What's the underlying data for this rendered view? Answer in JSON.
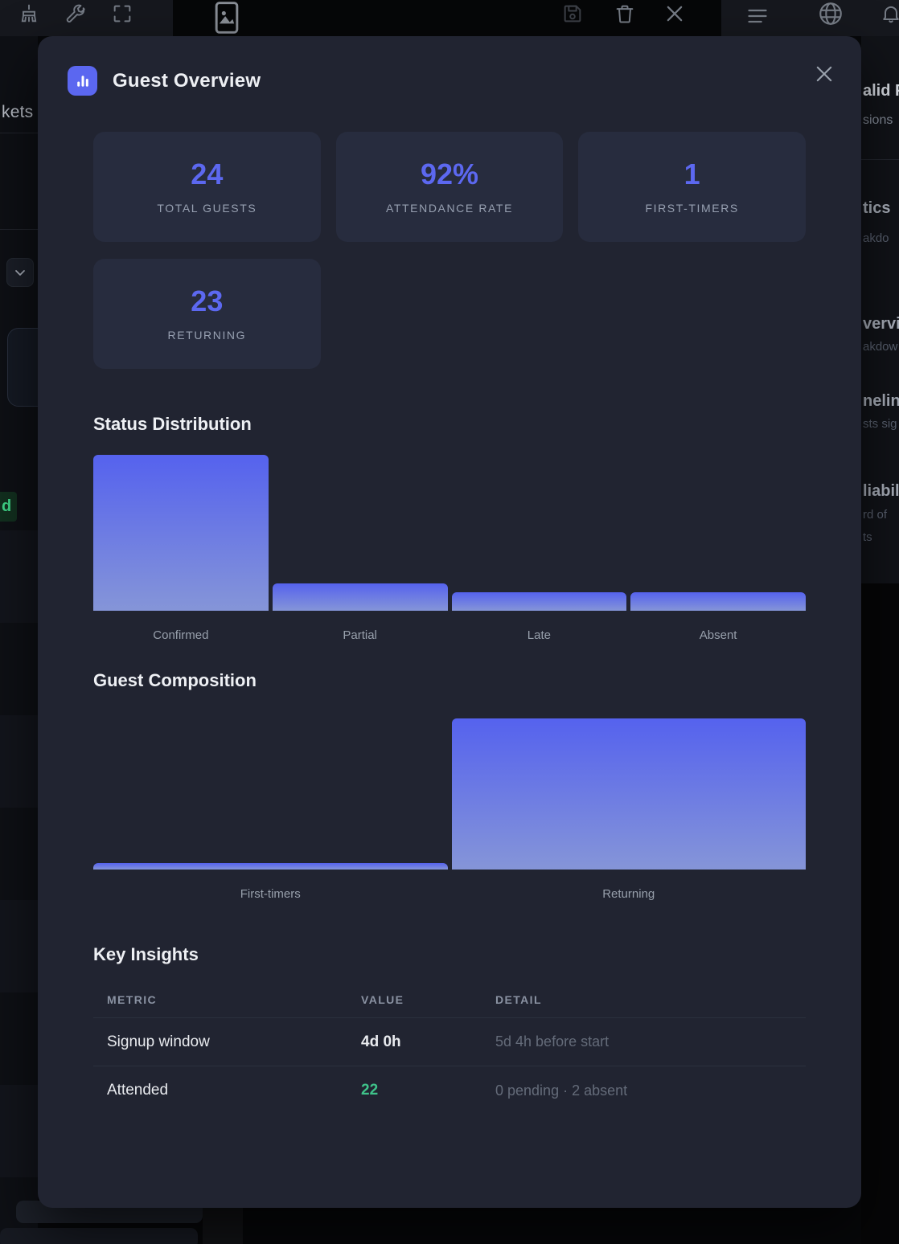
{
  "background": {
    "topbar": {
      "icons": [
        "broom-icon",
        "wrench-icon",
        "fullscreen-icon",
        "image-icon",
        "save-icon",
        "trash-icon",
        "close-icon",
        "menu-icon",
        "globe-icon",
        "bell-icon"
      ]
    },
    "left_panel": {
      "clipped_nav_text": "kets",
      "clipped_badge_text": "d",
      "chevron_icon": "chevron-down-icon"
    },
    "right_panel": {
      "fragments": [
        {
          "text": "alid P"
        },
        {
          "text": "sions"
        },
        {
          "text": "tics"
        },
        {
          "text": "akdo"
        },
        {
          "text": "vervie"
        },
        {
          "text": "akdow"
        },
        {
          "text": "neline"
        },
        {
          "text": "sts sig"
        },
        {
          "text": "liabil"
        },
        {
          "text": "rd of"
        },
        {
          "text": "ts"
        }
      ]
    }
  },
  "modal": {
    "title": "Guest Overview",
    "header_icon": "bar-chart-icon",
    "stats": [
      {
        "value": "24",
        "label": "TOTAL GUESTS"
      },
      {
        "value": "92%",
        "label": "ATTENDANCE RATE"
      },
      {
        "value": "1",
        "label": "FIRST-TIMERS"
      },
      {
        "value": "23",
        "label": "RETURNING"
      }
    ],
    "sections": {
      "status_distribution_title": "Status Distribution",
      "guest_composition_title": "Guest Composition",
      "key_insights_title": "Key Insights"
    },
    "insights_table": {
      "headers": [
        "METRIC",
        "VALUE",
        "DETAIL"
      ],
      "rows": [
        {
          "metric": "Signup window",
          "value": "4d 0h",
          "detail": "5d 4h before start",
          "value_color": "#e9ebef"
        },
        {
          "metric": "Attended",
          "value": "22",
          "detail": "0 pending · 2 absent",
          "value_color": "#3fc28a"
        }
      ]
    }
  },
  "chart_data": [
    {
      "type": "bar",
      "title": "Status Distribution",
      "categories": [
        "Confirmed",
        "Partial",
        "Late",
        "Absent"
      ],
      "values": [
        17,
        3,
        2,
        2
      ],
      "xlabel": "",
      "ylabel": "",
      "ylim": [
        0,
        17
      ],
      "grid": false,
      "legend": false,
      "bar_gradient": [
        "#5562ee",
        "#8595d8"
      ]
    },
    {
      "type": "bar",
      "title": "Guest Composition",
      "categories": [
        "First-timers",
        "Returning"
      ],
      "values": [
        1,
        23
      ],
      "xlabel": "",
      "ylabel": "",
      "ylim": [
        0,
        23
      ],
      "grid": false,
      "legend": false,
      "bar_gradient": [
        "#5562ee",
        "#8595d8"
      ]
    }
  ],
  "colors": {
    "accent_indigo": "#5b67f0",
    "stat_value": "#5c68f0",
    "positive_green": "#3fc28a",
    "modal_bg": "#212431",
    "card_bg": "#272c3e",
    "bar_gradient_top": "#5562ee",
    "bar_gradient_bottom": "#8595d8"
  }
}
